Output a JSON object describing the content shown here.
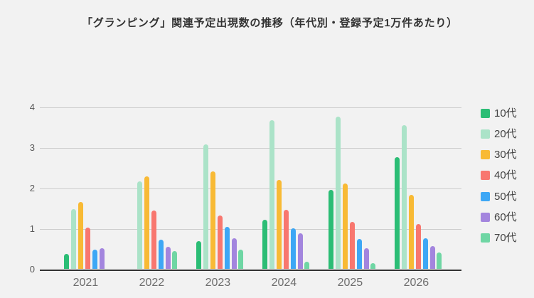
{
  "title": "「グランピング」関連予定出現数の推移（年代別・登録予定1万件あたり）",
  "chart_data": {
    "type": "bar",
    "title": "「グランピング」関連予定出現数の推移（年代別・登録予定1万件あたり）",
    "categories": [
      "2021",
      "2022",
      "2023",
      "2024",
      "2025",
      "2026"
    ],
    "series": [
      {
        "name": "10代",
        "color": "#2bbd75",
        "values": [
          0.37,
          0,
          0.69,
          1.22,
          1.95,
          2.77
        ]
      },
      {
        "name": "20代",
        "color": "#abe3c8",
        "values": [
          1.48,
          2.16,
          3.08,
          3.68,
          3.77,
          3.56
        ]
      },
      {
        "name": "30代",
        "color": "#f8ba35",
        "values": [
          1.66,
          2.3,
          2.42,
          2.21,
          2.11,
          1.84
        ]
      },
      {
        "name": "40代",
        "color": "#f8776f",
        "values": [
          1.02,
          1.44,
          1.33,
          1.46,
          1.17,
          1.11
        ]
      },
      {
        "name": "50代",
        "color": "#3da7f5",
        "values": [
          0.49,
          0.72,
          1.04,
          1.01,
          0.75,
          0.76
        ]
      },
      {
        "name": "60代",
        "color": "#a385de",
        "values": [
          0.52,
          0.56,
          0.77,
          0.89,
          0.52,
          0.57
        ]
      },
      {
        "name": "70代",
        "color": "#6fd6a4",
        "values": [
          0,
          0.44,
          0.48,
          0.19,
          0.15,
          0.41
        ]
      }
    ],
    "xlabel": "",
    "ylabel": "",
    "y_ticks": [
      0,
      1,
      2,
      3,
      4
    ],
    "ylim": [
      0,
      4
    ],
    "grid": true,
    "legend_position": "right",
    "background_color": "#f2f2f2",
    "gridline_color": "#cccccc",
    "baseline_color": "#333333"
  }
}
